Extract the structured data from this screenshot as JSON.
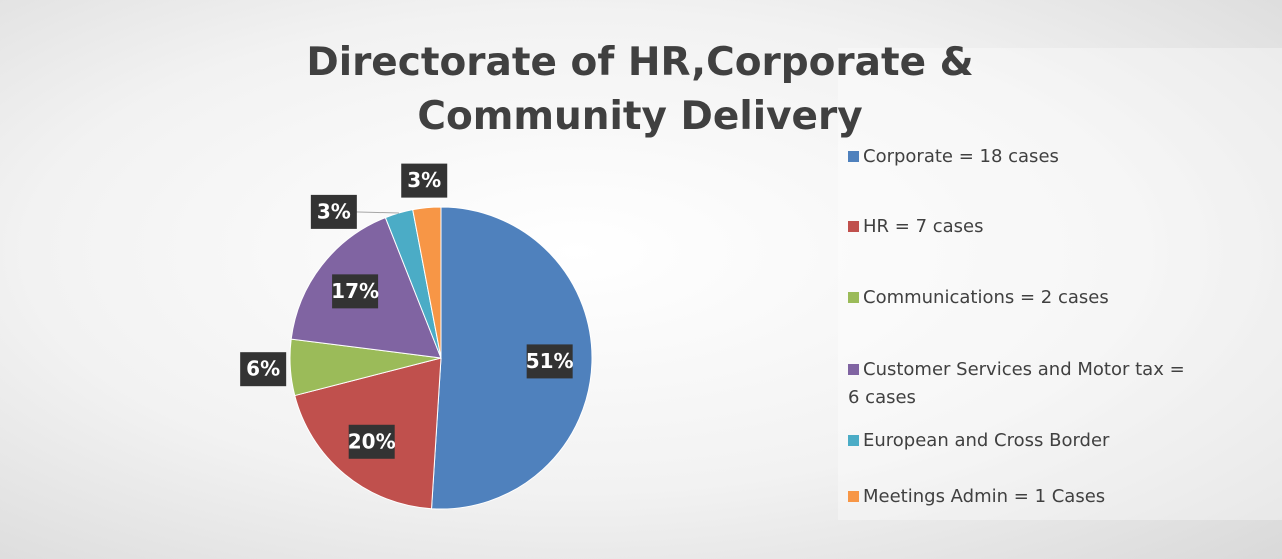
{
  "chart_data": {
    "type": "pie",
    "title": "Directorate of HR,Corporate & Community Delivery",
    "categories": [
      "Corporate = 18 cases",
      "HR = 7 cases",
      "Communications = 2 cases",
      "Customer Services and Motor tax = 6 cases",
      "European and Cross Border",
      "Meetings Admin = 1 Cases"
    ],
    "values": [
      51,
      20,
      6,
      17,
      3,
      3
    ],
    "value_labels": [
      "51%",
      "20%",
      "6%",
      "17%",
      "3%",
      "3%"
    ],
    "colors": [
      "#4f81bd",
      "#c0504d",
      "#9bbb59",
      "#8064a2",
      "#4bacc6",
      "#f79646"
    ],
    "legend": "right"
  }
}
